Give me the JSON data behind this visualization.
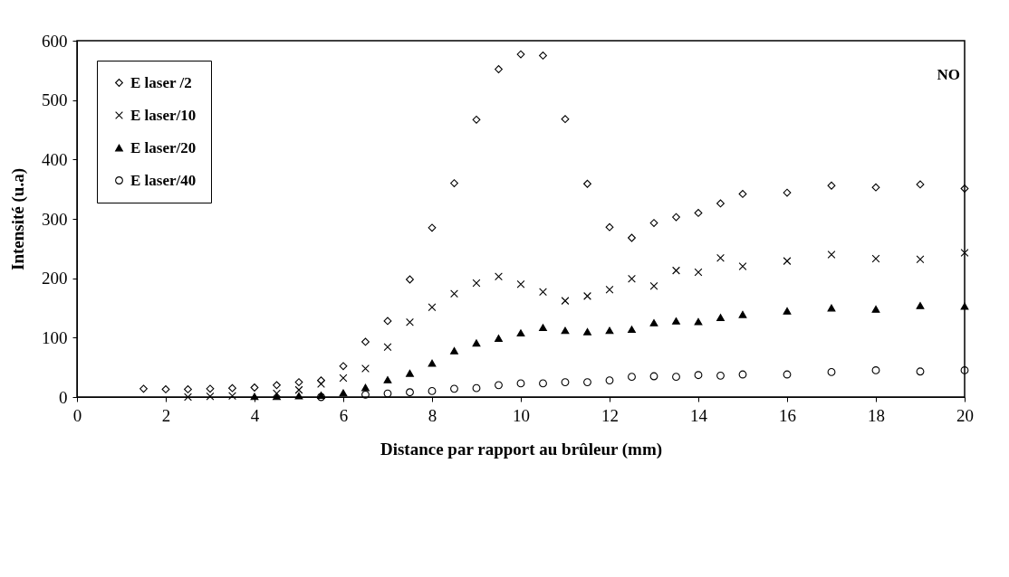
{
  "chart_data": {
    "type": "scatter",
    "xlabel": "Distance par rapport au brûleur (mm)",
    "ylabel": "Intensité (u.a)",
    "annotations": [
      "NO"
    ],
    "xlim": [
      0,
      20
    ],
    "xticks": [
      0,
      2,
      4,
      6,
      8,
      10,
      12,
      14,
      16,
      18,
      20
    ],
    "ylim": [
      0,
      600
    ],
    "yticks": [
      0,
      100,
      200,
      300,
      400,
      500,
      600
    ],
    "grid": false,
    "legend": "top left",
    "series": [
      {
        "name": "E laser /2",
        "color": "#000000",
        "marker": "diamond",
        "x": [
          1.5,
          2,
          2.5,
          3,
          3.5,
          4,
          4.5,
          5,
          5.5,
          6,
          6.5,
          7,
          7.5,
          8,
          8.5,
          9,
          9.5,
          10,
          10.5,
          11,
          11.5,
          12,
          12.5,
          13,
          13.5,
          14,
          14.5,
          15,
          16,
          17,
          18,
          19,
          20
        ],
        "values": [
          14,
          13,
          13,
          14,
          15,
          16,
          20,
          25,
          28,
          52,
          93,
          128,
          198,
          285,
          360,
          467,
          552,
          577,
          575,
          468,
          359,
          286,
          268,
          293,
          303,
          310,
          326,
          342,
          344,
          356,
          353,
          358,
          351
        ]
      },
      {
        "name": "E laser/10",
        "color": "#000000",
        "marker": "cross",
        "x": [
          2.5,
          3,
          3.5,
          4.5,
          5,
          5.5,
          6,
          6.5,
          7,
          7.5,
          8,
          8.5,
          9,
          9.5,
          10,
          10.5,
          11,
          11.5,
          12,
          12.5,
          13,
          13.5,
          14,
          14.5,
          15,
          16,
          17,
          18,
          19,
          20
        ],
        "values": [
          0,
          1,
          2,
          6,
          12,
          22,
          32,
          48,
          84,
          126,
          151,
          174,
          192,
          203,
          190,
          177,
          162,
          170,
          181,
          199,
          187,
          213,
          210,
          234,
          220,
          229,
          240,
          233,
          232,
          243
        ]
      },
      {
        "name": "E laser/20",
        "color": "#000000",
        "marker": "triangle",
        "x": [
          4,
          4.5,
          5,
          5.5,
          6,
          6.5,
          7,
          7.5,
          8,
          8.5,
          9,
          9.5,
          10,
          10.5,
          11,
          11.5,
          12,
          12.5,
          13,
          13.5,
          14,
          14.5,
          15,
          16,
          17,
          18,
          19,
          20
        ],
        "values": [
          1,
          1,
          2,
          3,
          7,
          16,
          29,
          40,
          57,
          78,
          91,
          99,
          108,
          117,
          112,
          110,
          112,
          114,
          125,
          128,
          127,
          134,
          139,
          145,
          150,
          148,
          154,
          153
        ]
      },
      {
        "name": "E laser/40",
        "color": "#000000",
        "marker": "circle",
        "x": [
          5.5,
          6.5,
          7,
          7.5,
          8,
          8.5,
          9,
          9.5,
          10,
          10.5,
          11,
          11.5,
          12,
          12.5,
          13,
          13.5,
          14,
          14.5,
          15,
          16,
          17,
          18,
          19,
          20
        ],
        "values": [
          0,
          4,
          6,
          8,
          10,
          14,
          15,
          20,
          23,
          23,
          25,
          25,
          28,
          34,
          35,
          34,
          37,
          36,
          38,
          38,
          42,
          45,
          43,
          45
        ]
      }
    ]
  }
}
